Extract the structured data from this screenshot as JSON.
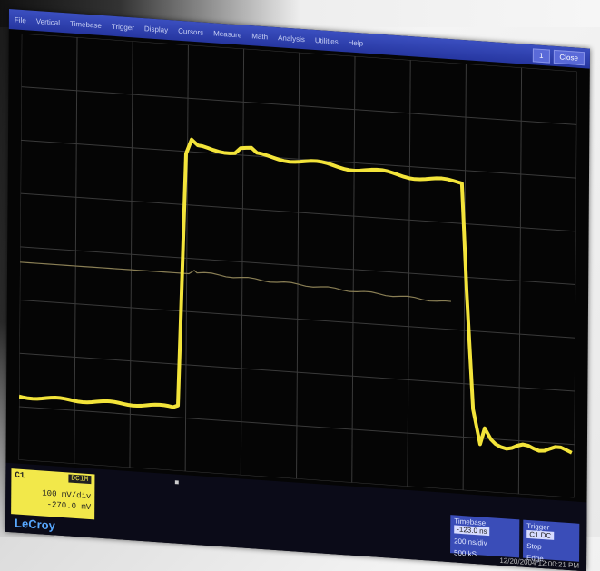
{
  "menu": [
    "File",
    "Vertical",
    "Timebase",
    "Trigger",
    "Display",
    "Cursors",
    "Measure",
    "Math",
    "Analysis",
    "Utilities",
    "Help"
  ],
  "buttons": {
    "minimize": "1",
    "close": "Close"
  },
  "channel": {
    "label": "C1",
    "tag": "DC1M",
    "volts_div": "100 mV/div",
    "offset": "-270.0 mV"
  },
  "logo": "LeCroy",
  "timebase": {
    "title": "Timebase",
    "value": "-123.0 ns",
    "r1": "200 ns/div",
    "r2": "500 kS"
  },
  "trigger": {
    "title": "Trigger",
    "tag": "C1 DC",
    "r1": "Stop",
    "r2": "Edge"
  },
  "timestamp": "12/20/2004 12:00:21 PM",
  "colors": {
    "trace": "#f3e43a",
    "grid": "#3a3a3a",
    "screen": "#050505",
    "menu": "#2a3aa8"
  }
}
